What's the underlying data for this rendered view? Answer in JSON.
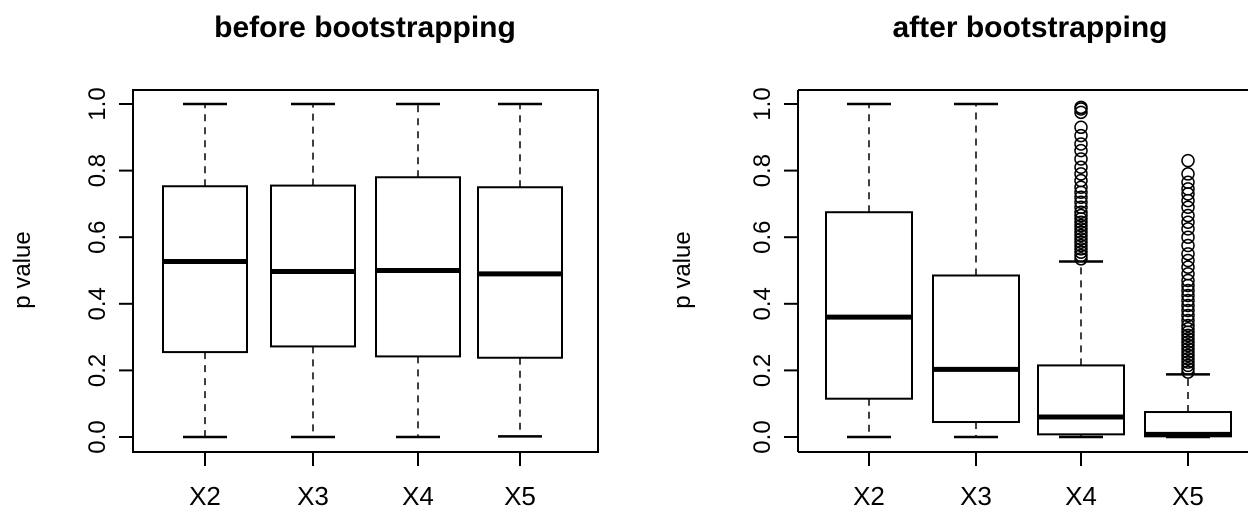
{
  "chart_data": [
    {
      "type": "boxplot",
      "title": "before bootstrapping",
      "xlabel": "",
      "ylabel": "p value",
      "ylim": [
        0,
        1
      ],
      "yticks": [
        "0.0",
        "0.2",
        "0.4",
        "0.6",
        "0.8",
        "1.0"
      ],
      "frame": "full",
      "categories": [
        "X2",
        "X3",
        "X4",
        "X5"
      ],
      "boxes": [
        {
          "min": 0.0,
          "q1": 0.255,
          "median": 0.527,
          "q3": 0.753,
          "max": 1.0,
          "outliers": []
        },
        {
          "min": 0.0,
          "q1": 0.272,
          "median": 0.497,
          "q3": 0.755,
          "max": 1.0,
          "outliers": []
        },
        {
          "min": 0.0,
          "q1": 0.242,
          "median": 0.5,
          "q3": 0.78,
          "max": 1.0,
          "outliers": []
        },
        {
          "min": 0.002,
          "q1": 0.238,
          "median": 0.49,
          "q3": 0.75,
          "max": 1.0,
          "outliers": []
        }
      ]
    },
    {
      "type": "boxplot",
      "title": "after bootstrapping",
      "xlabel": "",
      "ylabel": "p value",
      "ylim": [
        0,
        1
      ],
      "yticks": [
        "0.0",
        "0.2",
        "0.4",
        "0.6",
        "0.8",
        "1.0"
      ],
      "frame": "partial",
      "categories": [
        "X2",
        "X3",
        "X4",
        "X5"
      ],
      "boxes": [
        {
          "min": 0.0,
          "q1": 0.115,
          "median": 0.36,
          "q3": 0.675,
          "max": 1.0,
          "outliers": []
        },
        {
          "min": 0.0,
          "q1": 0.045,
          "median": 0.203,
          "q3": 0.485,
          "max": 1.0,
          "outliers": []
        },
        {
          "min": 0.0,
          "q1": 0.008,
          "median": 0.06,
          "q3": 0.215,
          "max": 0.527,
          "outliers": [
            0.535,
            0.545,
            0.555,
            0.565,
            0.575,
            0.585,
            0.595,
            0.605,
            0.615,
            0.625,
            0.635,
            0.645,
            0.655,
            0.665,
            0.675,
            0.69,
            0.705,
            0.72,
            0.735,
            0.75,
            0.77,
            0.79,
            0.81,
            0.835,
            0.86,
            0.88,
            0.905,
            0.93,
            0.975,
            0.985,
            0.99
          ]
        },
        {
          "min": 0.0,
          "q1": 0.002,
          "median": 0.008,
          "q3": 0.075,
          "max": 0.188,
          "outliers": [
            0.195,
            0.205,
            0.215,
            0.225,
            0.235,
            0.245,
            0.255,
            0.265,
            0.275,
            0.285,
            0.295,
            0.305,
            0.315,
            0.325,
            0.335,
            0.35,
            0.365,
            0.38,
            0.395,
            0.41,
            0.425,
            0.44,
            0.455,
            0.47,
            0.49,
            0.51,
            0.53,
            0.55,
            0.575,
            0.6,
            0.625,
            0.645,
            0.665,
            0.69,
            0.71,
            0.73,
            0.745,
            0.765,
            0.79,
            0.83
          ]
        }
      ]
    }
  ]
}
